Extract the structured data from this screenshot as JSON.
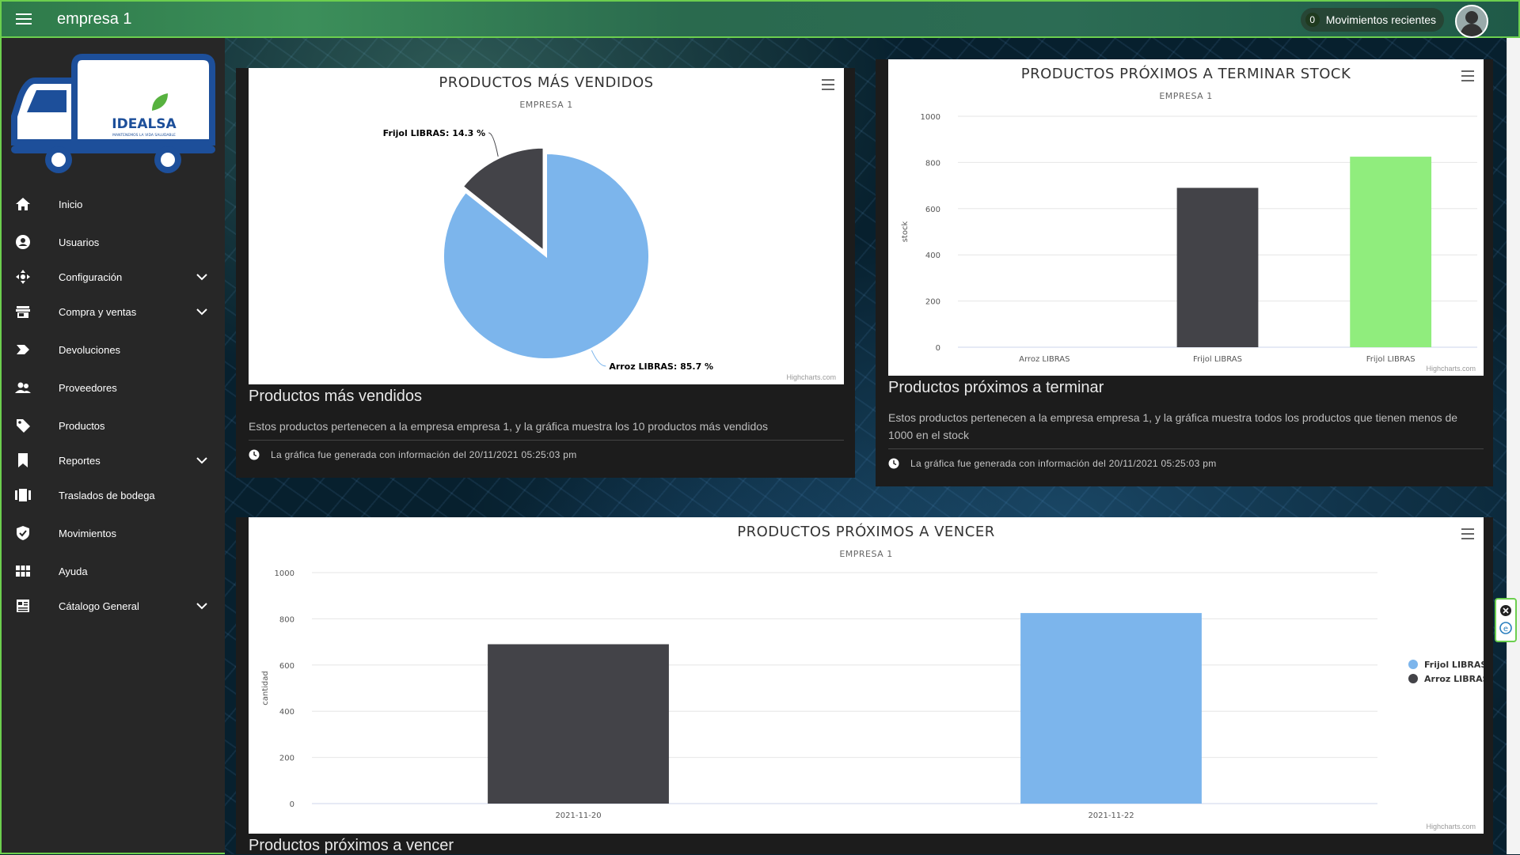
{
  "header": {
    "title": "empresa 1",
    "recent_movements_count": "0",
    "recent_movements_label": "Movimientos recientes"
  },
  "logo": {
    "brand": "IDEALSA",
    "tagline": "MANTENEMOS LA VIDA SALUDABLE"
  },
  "sidebar": {
    "items": [
      {
        "label": "Inicio",
        "icon": "home-icon"
      },
      {
        "label": "Usuarios",
        "icon": "user-circle-icon"
      },
      {
        "label": "Configuración",
        "icon": "move-arrows-icon"
      },
      {
        "label": "Compra y ventas",
        "icon": "store-icon"
      },
      {
        "label": "Devoluciones",
        "icon": "label-icon"
      },
      {
        "label": "Proveedores",
        "icon": "people-icon"
      },
      {
        "label": "Productos",
        "icon": "tag-icon"
      },
      {
        "label": "Reportes",
        "icon": "bookmark-icon"
      },
      {
        "label": "Traslados de bodega",
        "icon": "transfer-icon"
      },
      {
        "label": "Movimientos",
        "icon": "shield-check-icon"
      },
      {
        "label": "Ayuda",
        "icon": "grid-icon"
      },
      {
        "label": "Cátalogo General",
        "icon": "catalog-icon"
      }
    ]
  },
  "cards": {
    "top_sellers": {
      "title": "Productos más vendidos",
      "description": "Estos productos pertenecen a la empresa empresa 1, y la gráfica muestra los 10 productos más vendidos",
      "footer": "La gráfica fue generada con información del 20/11/2021 05:25:03 pm"
    },
    "low_stock": {
      "title": "Productos próximos a terminar",
      "description": "Estos productos pertenecen a la empresa empresa 1, y la gráfica muestra todos los productos que tienen menos de 1000 en el stock",
      "footer": "La gráfica fue generada con información del 20/11/2021 05:25:03 pm"
    },
    "expiring": {
      "title": "Productos próximos a vencer"
    }
  },
  "credits": "Highcharts.com",
  "colors": {
    "blue": "#7cb5ec",
    "dark": "#434348",
    "green": "#90ed7d",
    "accent": "#6ccf4e"
  },
  "chart_data": [
    {
      "type": "pie",
      "title": "PRODUCTOS MÁS VENDIDOS",
      "subtitle": "EMPRESA 1",
      "slices": [
        {
          "name": "Arroz LIBRAS",
          "value": 85.7,
          "label": "Arroz LIBRAS: 85.7 %"
        },
        {
          "name": "Frijol LIBRAS",
          "value": 14.3,
          "label": "Frijol LIBRAS: 14.3 %"
        }
      ]
    },
    {
      "type": "bar",
      "title": "PRODUCTOS PRÓXIMOS A TERMINAR STOCK",
      "subtitle": "EMPRESA 1",
      "ylabel": "stock",
      "ylim": [
        0,
        1000
      ],
      "yticks": [
        "0",
        "200",
        "400",
        "600",
        "800",
        "1000"
      ],
      "categories": [
        "Arroz LIBRAS",
        "Frijol LIBRAS",
        "Frijol LIBRAS"
      ],
      "values": [
        0,
        690,
        825
      ]
    },
    {
      "type": "bar",
      "title": "PRODUCTOS PRÓXIMOS A VENCER",
      "subtitle": "EMPRESA 1",
      "ylabel": "cantidad",
      "ylim": [
        0,
        1000
      ],
      "yticks": [
        "0",
        "200",
        "400",
        "600",
        "800",
        "1000"
      ],
      "categories": [
        "2021-11-20",
        "2021-11-22"
      ],
      "series": [
        {
          "name": "Frijol LIBRAS",
          "values": [
            0,
            825
          ]
        },
        {
          "name": "Arroz LIBRAS",
          "values": [
            690,
            0
          ]
        }
      ]
    }
  ]
}
